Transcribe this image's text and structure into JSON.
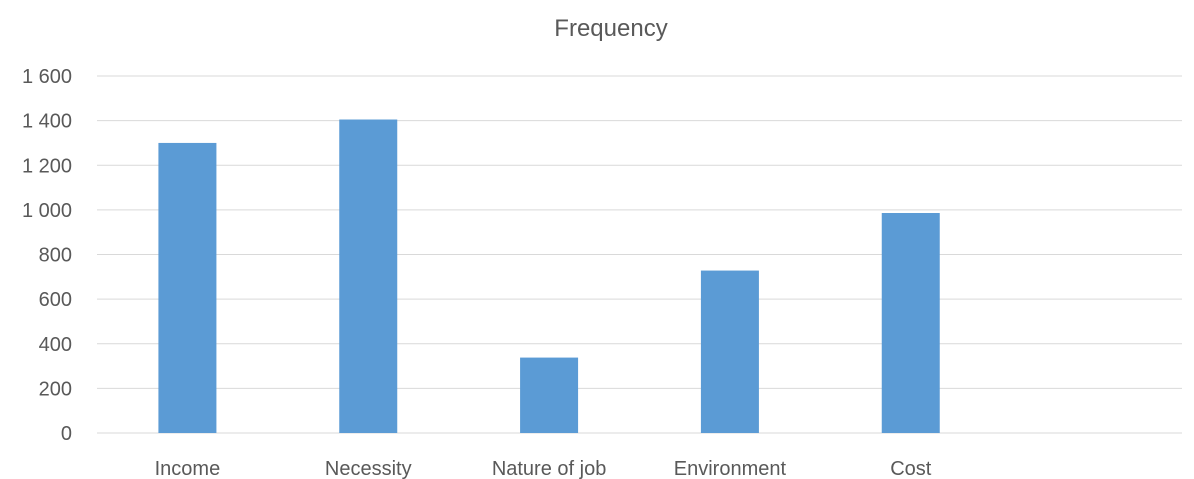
{
  "chart_data": {
    "type": "bar",
    "title": "Frequency",
    "categories": [
      "Income",
      "Necessity",
      "Nature of job",
      "Environment",
      "Cost",
      ""
    ],
    "values": [
      1300,
      1405,
      338,
      728,
      986,
      null
    ],
    "ylim": [
      0,
      1600
    ],
    "yticks": [
      0,
      200,
      400,
      600,
      800,
      1000,
      1200,
      1400,
      1600
    ],
    "ytick_labels": [
      "0",
      "200",
      "400",
      "600",
      "800",
      "1 000",
      "1 200",
      "1 400",
      "1 600"
    ],
    "grid": true,
    "legend": "none",
    "bar_color": "#5b9bd5"
  }
}
